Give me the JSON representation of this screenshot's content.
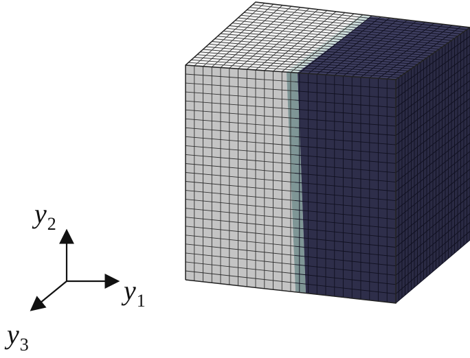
{
  "figure": {
    "colors": {
      "light_phase": "#c4c4c4",
      "light_phase_top": "#f4f4f4",
      "interface": "#7f9696",
      "interface_top": "#cfe0de",
      "dark_phase": "#2e2e4a",
      "dark_phase_top": "#3e3e60",
      "dark_phase_side": "#2a2a44",
      "mesh_line_light": "#303030",
      "mesh_line_dark": "#101020",
      "axis": "#111111"
    },
    "axes": {
      "y1": {
        "symbol": "y",
        "index": "1"
      },
      "y2": {
        "symbol": "y",
        "index": "2"
      },
      "y3": {
        "symbol": "y",
        "index": "3"
      }
    }
  }
}
